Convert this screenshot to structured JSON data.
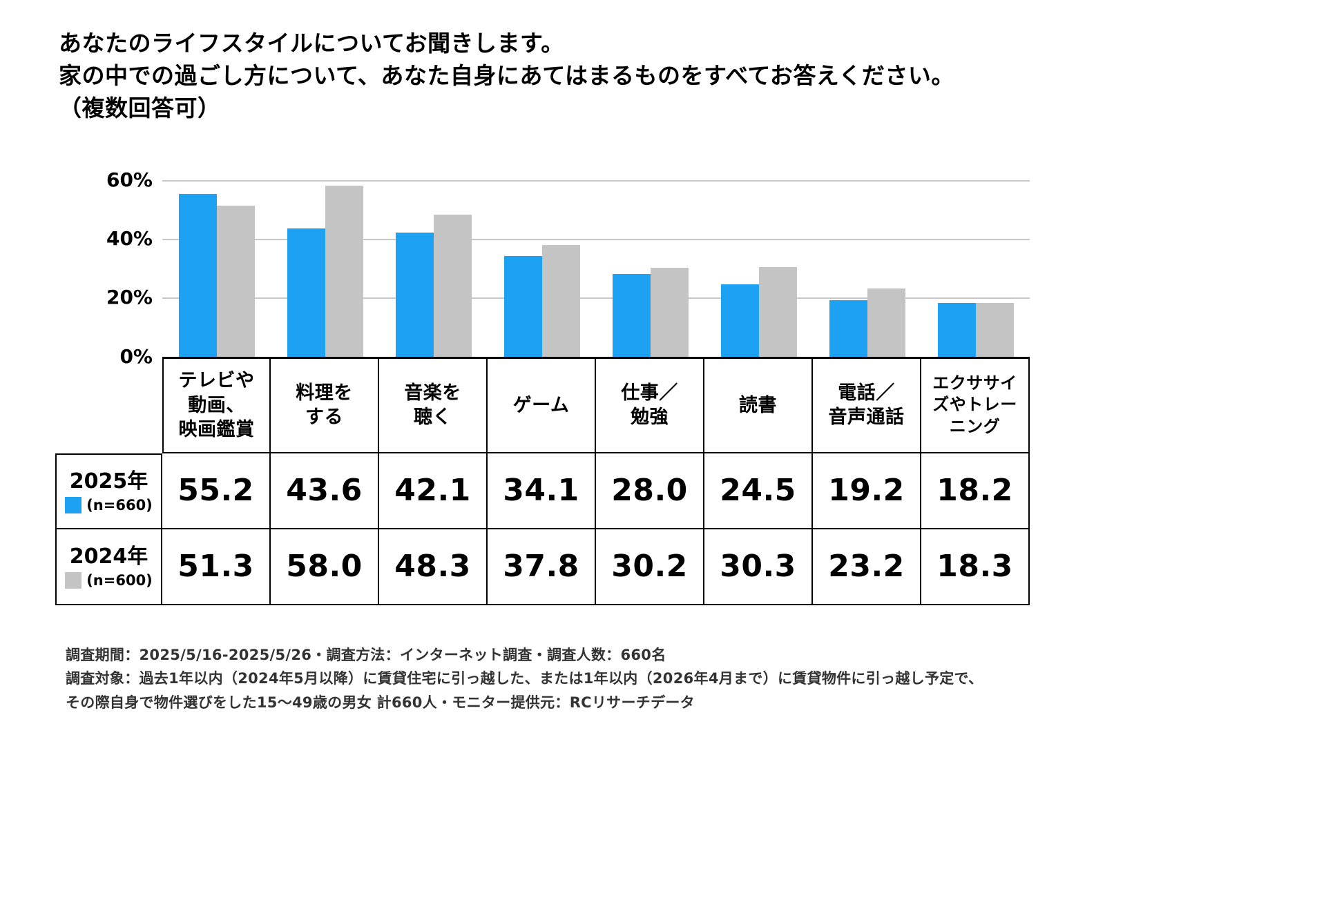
{
  "title": {
    "line1": "あなたのライフスタイルについてお聞きします。",
    "line2": "家の中での過ごし方について、あなた自身にあてはまるものをすべてお答えください。",
    "line3": "（複数回答可）"
  },
  "chart_data": {
    "type": "bar",
    "title": "家の中での過ごし方（複数回答可）",
    "categories": [
      "テレビや動画、映画鑑賞",
      "料理をする",
      "音楽を聴く",
      "ゲーム",
      "仕事／勉強",
      "読書",
      "電話／音声通話",
      "エクササイズやトレーニング"
    ],
    "category_labels": [
      "テレビや\n動画、\n映画鑑賞",
      "料理を\nする",
      "音楽を\n聴く",
      "ゲーム",
      "仕事／\n勉強",
      "読書",
      "電話／\n音声通話",
      "エクササイ\nズやトレー\nニング"
    ],
    "series": [
      {
        "key": "2025",
        "name": "2025年",
        "n_label": "(n=660)",
        "color": "#1da1f2",
        "values": [
          55.2,
          43.6,
          42.1,
          34.1,
          28.0,
          24.5,
          19.2,
          18.2
        ]
      },
      {
        "key": "2024",
        "name": "2024年",
        "n_label": "(n=600)",
        "color": "#c4c4c4",
        "values": [
          51.3,
          58.0,
          48.3,
          37.8,
          30.2,
          30.3,
          23.2,
          18.3
        ]
      }
    ],
    "xlabel": "",
    "ylabel": "",
    "ylim": [
      0,
      60
    ],
    "yticks": [
      {
        "label": "0%",
        "value": 0
      },
      {
        "label": "20%",
        "value": 20
      },
      {
        "label": "40%",
        "value": 40
      },
      {
        "label": "60%",
        "value": 60
      }
    ],
    "grid": true,
    "legend_position": "table-left"
  },
  "footer": {
    "line1": "調査期間：2025/5/16-2025/5/26・調査方法：インターネット調査・調査人数：660名",
    "line2": "調査対象：過去1年以内（2024年5月以降）に賃貸住宅に引っ越した、または1年以内（2026年4月まで）に賃貸物件に引っ越し予定で、",
    "line3": "その際自身で物件選びをした15～49歳の男女 計660人・モニター提供元：RCリサーチデータ"
  }
}
